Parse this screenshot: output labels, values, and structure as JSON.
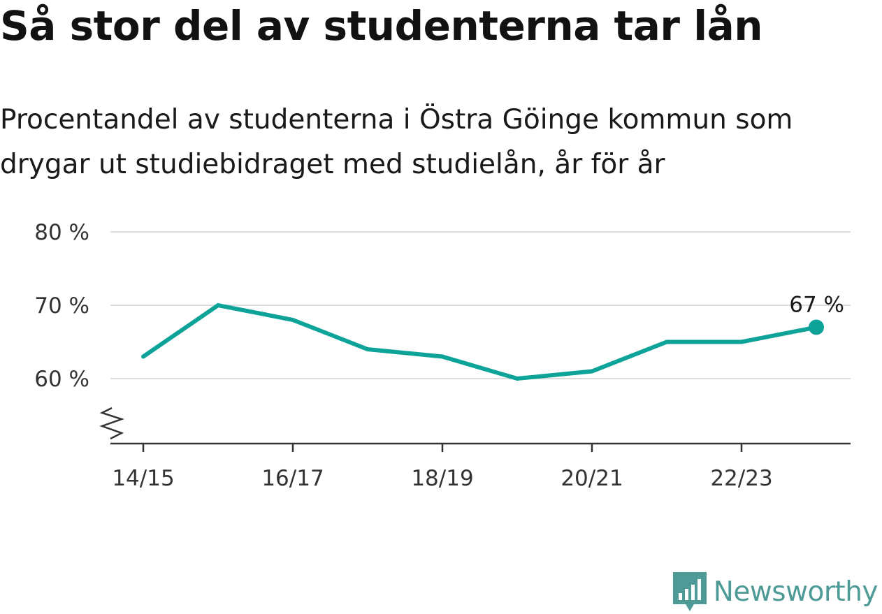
{
  "colors": {
    "line": "#0ea398",
    "grid": "#dcdcdc",
    "axis": "#333333",
    "brand": "#4d9a96"
  },
  "chart_data": {
    "type": "line",
    "title": "Så stor del av studenterna tar lån",
    "subtitle": [
      "Procentandel av studenterna i Östra Göinge kommun som",
      "drygar ut studiebidraget med studielån, år för år"
    ],
    "xlabel": "",
    "ylabel": "",
    "x": [
      "14/15",
      "15/16",
      "16/17",
      "17/18",
      "18/19",
      "19/20",
      "20/21",
      "21/22",
      "22/23",
      "23/24"
    ],
    "x_tick_labels": [
      "14/15",
      "16/17",
      "18/19",
      "20/21",
      "22/23"
    ],
    "series": [
      {
        "values": [
          63,
          70,
          68,
          64,
          63,
          60,
          61,
          65,
          65,
          67
        ]
      }
    ],
    "y_ticks": [
      60,
      70,
      80
    ],
    "y_tick_labels": [
      "60 %",
      "70 %",
      "80 %"
    ],
    "ylim": [
      51,
      80
    ],
    "y_axis_break": true,
    "grid": true,
    "legend": "none",
    "end_label": "67 %"
  },
  "brand": {
    "name": "Newsworthy",
    "icon": "bar-chart-speech-bubble-icon"
  }
}
